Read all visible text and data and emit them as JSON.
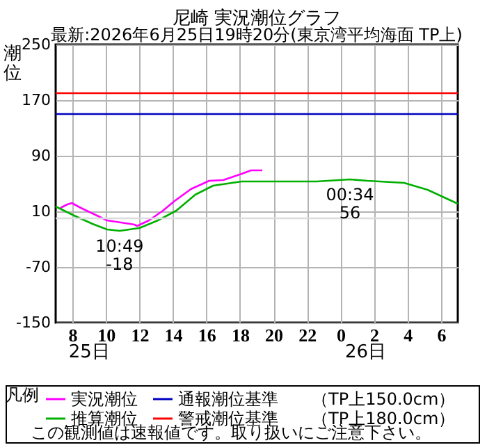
{
  "chart_data": {
    "type": "line",
    "title": "尼崎 実況潮位グラフ",
    "subtitle": "最新:2026年6月25日19時20分(東京湾平均海面 TP上)",
    "ylabel": "潮位",
    "legend_title": "凡例",
    "xlim": [
      "2026-06-25T07:00",
      "2026-06-26T07:00"
    ],
    "xticks": [
      {
        "value": "2026-06-25T08:00",
        "label": "8"
      },
      {
        "value": "2026-06-25T10:00",
        "label": "10"
      },
      {
        "value": "2026-06-25T12:00",
        "label": "12"
      },
      {
        "value": "2026-06-25T14:00",
        "label": "14"
      },
      {
        "value": "2026-06-25T16:00",
        "label": "16"
      },
      {
        "value": "2026-06-25T18:00",
        "label": "18"
      },
      {
        "value": "2026-06-25T20:00",
        "label": "20"
      },
      {
        "value": "2026-06-25T22:00",
        "label": "22"
      },
      {
        "value": "2026-06-26T00:00",
        "label": "0"
      },
      {
        "value": "2026-06-26T02:00",
        "label": "2"
      },
      {
        "value": "2026-06-26T04:00",
        "label": "4"
      },
      {
        "value": "2026-06-26T06:00",
        "label": "6"
      }
    ],
    "x2lim": [
      "2026-06-25T07:00",
      "2026-06-26T07:00"
    ],
    "x2ticks": [
      {
        "value": "2026-06-25T09:00",
        "label": "25日"
      },
      {
        "value": "2026-06-26T01:30",
        "label": "26日"
      }
    ],
    "ylim": [
      -150,
      250
    ],
    "yticks": [
      250,
      170,
      90,
      10,
      -70,
      -150
    ],
    "grid": true,
    "legend": "bottom",
    "series": [
      {
        "name": "実況潮位",
        "color": "#ff00ff",
        "x": [
          "2026-06-25T07:17",
          "2026-06-25T07:42",
          "2026-06-25T07:58",
          "2026-06-25T08:30",
          "2026-06-25T09:12",
          "2026-06-25T10:04",
          "2026-06-25T10:54",
          "2026-06-25T11:42",
          "2026-06-25T11:52",
          "2026-06-25T12:34",
          "2026-06-25T13:24",
          "2026-06-25T14:06",
          "2026-06-25T15:04",
          "2026-06-25T16:10",
          "2026-06-25T17:00",
          "2026-06-25T18:06",
          "2026-06-25T18:40",
          "2026-06-25T19:20"
        ],
        "values": [
          15,
          20,
          22,
          15,
          7,
          -3,
          -6,
          -9,
          -11,
          -3,
          11,
          25,
          42,
          54,
          55,
          64,
          69,
          69
        ]
      },
      {
        "name": "推算潮位",
        "color": "#00b000",
        "x": [
          "2026-06-25T07:00",
          "2026-06-25T08:06",
          "2026-06-25T09:12",
          "2026-06-25T10:04",
          "2026-06-25T10:49",
          "2026-06-25T12:00",
          "2026-06-25T13:06",
          "2026-06-25T14:12",
          "2026-06-25T15:20",
          "2026-06-25T16:24",
          "2026-06-25T18:06",
          "2026-06-25T20:20",
          "2026-06-25T22:34",
          "2026-06-26T00:34",
          "2026-06-26T01:36",
          "2026-06-26T03:48",
          "2026-06-26T05:12",
          "2026-06-26T07:00"
        ],
        "values": [
          17,
          4,
          -8,
          -16,
          -18,
          -14,
          -3,
          11,
          34,
          47,
          53,
          53,
          53,
          56,
          54,
          51,
          41,
          21
        ]
      }
    ],
    "ref_lines": [
      {
        "axis": "y",
        "value": 150,
        "label": "通報潮位基準　　（TP上150.0cm）",
        "color": "#0000c0"
      },
      {
        "axis": "y",
        "value": 180,
        "label": "警戒潮位基準　　（TP上180.0cm）",
        "color": "#ff0000"
      },
      {
        "axis": "y",
        "value": 0,
        "color": "#dcdcdc"
      }
    ],
    "annotations": [
      {
        "text": "10:49\n-18",
        "x": "2026-06-25T10:49",
        "y": -18
      },
      {
        "text": "00:34\n56",
        "x": "2026-06-26T00:34",
        "y": 56
      },
      "この観測値は速報値です。取り扱いにご注意下さい。"
    ]
  }
}
